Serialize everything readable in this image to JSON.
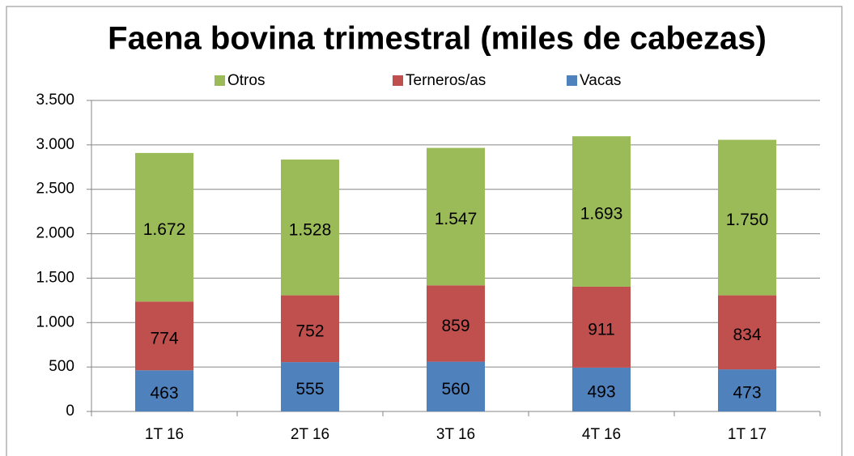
{
  "chart_data": {
    "type": "stacked_bar",
    "title": "Faena bovina trimestral (miles de cabezas)",
    "categories": [
      "1T 16",
      "2T 16",
      "3T 16",
      "4T 16",
      "1T 17"
    ],
    "series": [
      {
        "name": "Otros",
        "color": "#9bbb59",
        "values": [
          1672,
          1528,
          1547,
          1693,
          1750
        ],
        "value_labels": [
          "1.672",
          "1.528",
          "1.547",
          "1.693",
          "1.750"
        ]
      },
      {
        "name": "Terneros/as",
        "color": "#c0504d",
        "values": [
          774,
          752,
          859,
          911,
          834
        ],
        "value_labels": [
          "774",
          "752",
          "859",
          "911",
          "834"
        ]
      },
      {
        "name": "Vacas",
        "color": "#4f81bd",
        "values": [
          463,
          555,
          560,
          493,
          473
        ],
        "value_labels": [
          "463",
          "555",
          "560",
          "493",
          "473"
        ]
      }
    ],
    "ylim": [
      0,
      3500
    ],
    "yticks": [
      {
        "value": 0,
        "label": "0"
      },
      {
        "value": 500,
        "label": "500"
      },
      {
        "value": 1000,
        "label": "1.000"
      },
      {
        "value": 1500,
        "label": "1.500"
      },
      {
        "value": 2000,
        "label": "2.000"
      },
      {
        "value": 2500,
        "label": "2.500"
      },
      {
        "value": 3000,
        "label": "3.000"
      },
      {
        "value": 3500,
        "label": "3.500"
      }
    ],
    "grid": true,
    "legend": "top"
  }
}
